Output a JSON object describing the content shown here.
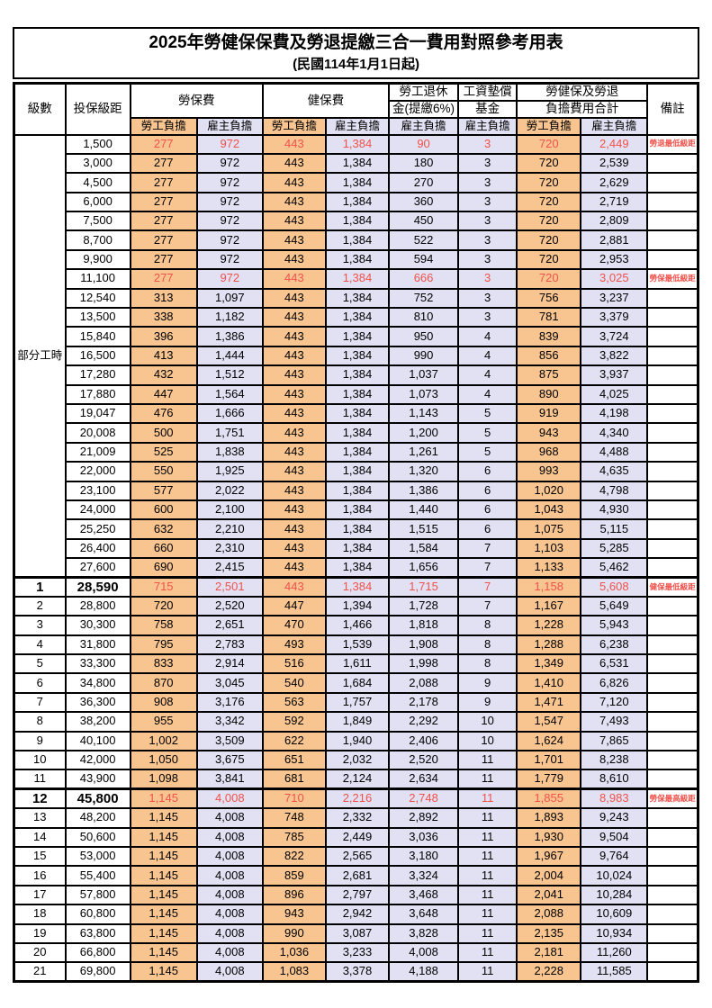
{
  "title": "2025年勞健保保費及勞退提繳三合一費用對照參考用表",
  "subtitle": "(民國114年1月1日起)",
  "header": {
    "level": "級數",
    "salary": "投保級距",
    "labor_ins": "勞保費",
    "health_ins": "健保費",
    "pension_line1": "勞工退休",
    "pension_line2": "金(提繳6%)",
    "wage_fund_line1": "工資墊償",
    "wage_fund_line2": "基金",
    "total_line1": "勞健保及勞退",
    "total_line2": "負擔費用合計",
    "remark": "備註",
    "employee": "勞工負擔",
    "employer": "雇主負擔"
  },
  "group_label": "部分工時",
  "colors": {
    "employee_bg": "#F8C591",
    "employer_bg": "#E2E0F3",
    "highlight_red": "#F0524B"
  },
  "rows": [
    {
      "salary": "1,500",
      "li_emp": "277",
      "li_er": "972",
      "hi_emp": "443",
      "hi_er": "1,384",
      "pension": "90",
      "fund": "3",
      "tot_emp": "720",
      "tot_er": "2,449",
      "note": "勞退最低級距",
      "red": true
    },
    {
      "salary": "3,000",
      "li_emp": "277",
      "li_er": "972",
      "hi_emp": "443",
      "hi_er": "1,384",
      "pension": "180",
      "fund": "3",
      "tot_emp": "720",
      "tot_er": "2,539",
      "note": ""
    },
    {
      "salary": "4,500",
      "li_emp": "277",
      "li_er": "972",
      "hi_emp": "443",
      "hi_er": "1,384",
      "pension": "270",
      "fund": "3",
      "tot_emp": "720",
      "tot_er": "2,629",
      "note": ""
    },
    {
      "salary": "6,000",
      "li_emp": "277",
      "li_er": "972",
      "hi_emp": "443",
      "hi_er": "1,384",
      "pension": "360",
      "fund": "3",
      "tot_emp": "720",
      "tot_er": "2,719",
      "note": ""
    },
    {
      "salary": "7,500",
      "li_emp": "277",
      "li_er": "972",
      "hi_emp": "443",
      "hi_er": "1,384",
      "pension": "450",
      "fund": "3",
      "tot_emp": "720",
      "tot_er": "2,809",
      "note": ""
    },
    {
      "salary": "8,700",
      "li_emp": "277",
      "li_er": "972",
      "hi_emp": "443",
      "hi_er": "1,384",
      "pension": "522",
      "fund": "3",
      "tot_emp": "720",
      "tot_er": "2,881",
      "note": ""
    },
    {
      "salary": "9,900",
      "li_emp": "277",
      "li_er": "972",
      "hi_emp": "443",
      "hi_er": "1,384",
      "pension": "594",
      "fund": "3",
      "tot_emp": "720",
      "tot_er": "2,953",
      "note": ""
    },
    {
      "salary": "11,100",
      "li_emp": "277",
      "li_er": "972",
      "hi_emp": "443",
      "hi_er": "1,384",
      "pension": "666",
      "fund": "3",
      "tot_emp": "720",
      "tot_er": "3,025",
      "note": "勞保最低級距",
      "red": true
    },
    {
      "salary": "12,540",
      "li_emp": "313",
      "li_er": "1,097",
      "hi_emp": "443",
      "hi_er": "1,384",
      "pension": "752",
      "fund": "3",
      "tot_emp": "756",
      "tot_er": "3,237",
      "note": ""
    },
    {
      "salary": "13,500",
      "li_emp": "338",
      "li_er": "1,182",
      "hi_emp": "443",
      "hi_er": "1,384",
      "pension": "810",
      "fund": "3",
      "tot_emp": "781",
      "tot_er": "3,379",
      "note": ""
    },
    {
      "salary": "15,840",
      "li_emp": "396",
      "li_er": "1,386",
      "hi_emp": "443",
      "hi_er": "1,384",
      "pension": "950",
      "fund": "4",
      "tot_emp": "839",
      "tot_er": "3,724",
      "note": ""
    },
    {
      "salary": "16,500",
      "li_emp": "413",
      "li_er": "1,444",
      "hi_emp": "443",
      "hi_er": "1,384",
      "pension": "990",
      "fund": "4",
      "tot_emp": "856",
      "tot_er": "3,822",
      "note": ""
    },
    {
      "salary": "17,280",
      "li_emp": "432",
      "li_er": "1,512",
      "hi_emp": "443",
      "hi_er": "1,384",
      "pension": "1,037",
      "fund": "4",
      "tot_emp": "875",
      "tot_er": "3,937",
      "note": ""
    },
    {
      "salary": "17,880",
      "li_emp": "447",
      "li_er": "1,564",
      "hi_emp": "443",
      "hi_er": "1,384",
      "pension": "1,073",
      "fund": "4",
      "tot_emp": "890",
      "tot_er": "4,025",
      "note": ""
    },
    {
      "salary": "19,047",
      "li_emp": "476",
      "li_er": "1,666",
      "hi_emp": "443",
      "hi_er": "1,384",
      "pension": "1,143",
      "fund": "5",
      "tot_emp": "919",
      "tot_er": "4,198",
      "note": ""
    },
    {
      "salary": "20,008",
      "li_emp": "500",
      "li_er": "1,751",
      "hi_emp": "443",
      "hi_er": "1,384",
      "pension": "1,200",
      "fund": "5",
      "tot_emp": "943",
      "tot_er": "4,340",
      "note": ""
    },
    {
      "salary": "21,009",
      "li_emp": "525",
      "li_er": "1,838",
      "hi_emp": "443",
      "hi_er": "1,384",
      "pension": "1,261",
      "fund": "5",
      "tot_emp": "968",
      "tot_er": "4,488",
      "note": ""
    },
    {
      "salary": "22,000",
      "li_emp": "550",
      "li_er": "1,925",
      "hi_emp": "443",
      "hi_er": "1,384",
      "pension": "1,320",
      "fund": "6",
      "tot_emp": "993",
      "tot_er": "4,635",
      "note": ""
    },
    {
      "salary": "23,100",
      "li_emp": "577",
      "li_er": "2,022",
      "hi_emp": "443",
      "hi_er": "1,384",
      "pension": "1,386",
      "fund": "6",
      "tot_emp": "1,020",
      "tot_er": "4,798",
      "note": ""
    },
    {
      "salary": "24,000",
      "li_emp": "600",
      "li_er": "2,100",
      "hi_emp": "443",
      "hi_er": "1,384",
      "pension": "1,440",
      "fund": "6",
      "tot_emp": "1,043",
      "tot_er": "4,930",
      "note": ""
    },
    {
      "salary": "25,250",
      "li_emp": "632",
      "li_er": "2,210",
      "hi_emp": "443",
      "hi_er": "1,384",
      "pension": "1,515",
      "fund": "6",
      "tot_emp": "1,075",
      "tot_er": "5,115",
      "note": ""
    },
    {
      "salary": "26,400",
      "li_emp": "660",
      "li_er": "2,310",
      "hi_emp": "443",
      "hi_er": "1,384",
      "pension": "1,584",
      "fund": "7",
      "tot_emp": "1,103",
      "tot_er": "5,285",
      "note": ""
    },
    {
      "salary": "27,600",
      "li_emp": "690",
      "li_er": "2,415",
      "hi_emp": "443",
      "hi_er": "1,384",
      "pension": "1,656",
      "fund": "7",
      "tot_emp": "1,133",
      "tot_er": "5,462",
      "note": ""
    },
    {
      "level": "1",
      "salary": "28,590",
      "li_emp": "715",
      "li_er": "2,501",
      "hi_emp": "443",
      "hi_er": "1,384",
      "pension": "1,715",
      "fund": "7",
      "tot_emp": "1,158",
      "tot_er": "5,608",
      "note": "健保最低級距",
      "red": true,
      "key": true
    },
    {
      "level": "2",
      "salary": "28,800",
      "li_emp": "720",
      "li_er": "2,520",
      "hi_emp": "447",
      "hi_er": "1,394",
      "pension": "1,728",
      "fund": "7",
      "tot_emp": "1,167",
      "tot_er": "5,649",
      "note": ""
    },
    {
      "level": "3",
      "salary": "30,300",
      "li_emp": "758",
      "li_er": "2,651",
      "hi_emp": "470",
      "hi_er": "1,466",
      "pension": "1,818",
      "fund": "8",
      "tot_emp": "1,228",
      "tot_er": "5,943",
      "note": ""
    },
    {
      "level": "4",
      "salary": "31,800",
      "li_emp": "795",
      "li_er": "2,783",
      "hi_emp": "493",
      "hi_er": "1,539",
      "pension": "1,908",
      "fund": "8",
      "tot_emp": "1,288",
      "tot_er": "6,238",
      "note": ""
    },
    {
      "level": "5",
      "salary": "33,300",
      "li_emp": "833",
      "li_er": "2,914",
      "hi_emp": "516",
      "hi_er": "1,611",
      "pension": "1,998",
      "fund": "8",
      "tot_emp": "1,349",
      "tot_er": "6,531",
      "note": ""
    },
    {
      "level": "6",
      "salary": "34,800",
      "li_emp": "870",
      "li_er": "3,045",
      "hi_emp": "540",
      "hi_er": "1,684",
      "pension": "2,088",
      "fund": "9",
      "tot_emp": "1,410",
      "tot_er": "6,826",
      "note": ""
    },
    {
      "level": "7",
      "salary": "36,300",
      "li_emp": "908",
      "li_er": "3,176",
      "hi_emp": "563",
      "hi_er": "1,757",
      "pension": "2,178",
      "fund": "9",
      "tot_emp": "1,471",
      "tot_er": "7,120",
      "note": ""
    },
    {
      "level": "8",
      "salary": "38,200",
      "li_emp": "955",
      "li_er": "3,342",
      "hi_emp": "592",
      "hi_er": "1,849",
      "pension": "2,292",
      "fund": "10",
      "tot_emp": "1,547",
      "tot_er": "7,493",
      "note": ""
    },
    {
      "level": "9",
      "salary": "40,100",
      "li_emp": "1,002",
      "li_er": "3,509",
      "hi_emp": "622",
      "hi_er": "1,940",
      "pension": "2,406",
      "fund": "10",
      "tot_emp": "1,624",
      "tot_er": "7,865",
      "note": ""
    },
    {
      "level": "10",
      "salary": "42,000",
      "li_emp": "1,050",
      "li_er": "3,675",
      "hi_emp": "651",
      "hi_er": "2,032",
      "pension": "2,520",
      "fund": "11",
      "tot_emp": "1,701",
      "tot_er": "8,238",
      "note": ""
    },
    {
      "level": "11",
      "salary": "43,900",
      "li_emp": "1,098",
      "li_er": "3,841",
      "hi_emp": "681",
      "hi_er": "2,124",
      "pension": "2,634",
      "fund": "11",
      "tot_emp": "1,779",
      "tot_er": "8,610",
      "note": ""
    },
    {
      "level": "12",
      "salary": "45,800",
      "li_emp": "1,145",
      "li_er": "4,008",
      "hi_emp": "710",
      "hi_er": "2,216",
      "pension": "2,748",
      "fund": "11",
      "tot_emp": "1,855",
      "tot_er": "8,983",
      "note": "勞保最高級距",
      "red": true,
      "key": true
    },
    {
      "level": "13",
      "salary": "48,200",
      "li_emp": "1,145",
      "li_er": "4,008",
      "hi_emp": "748",
      "hi_er": "2,332",
      "pension": "2,892",
      "fund": "11",
      "tot_emp": "1,893",
      "tot_er": "9,243",
      "note": ""
    },
    {
      "level": "14",
      "salary": "50,600",
      "li_emp": "1,145",
      "li_er": "4,008",
      "hi_emp": "785",
      "hi_er": "2,449",
      "pension": "3,036",
      "fund": "11",
      "tot_emp": "1,930",
      "tot_er": "9,504",
      "note": ""
    },
    {
      "level": "15",
      "salary": "53,000",
      "li_emp": "1,145",
      "li_er": "4,008",
      "hi_emp": "822",
      "hi_er": "2,565",
      "pension": "3,180",
      "fund": "11",
      "tot_emp": "1,967",
      "tot_er": "9,764",
      "note": ""
    },
    {
      "level": "16",
      "salary": "55,400",
      "li_emp": "1,145",
      "li_er": "4,008",
      "hi_emp": "859",
      "hi_er": "2,681",
      "pension": "3,324",
      "fund": "11",
      "tot_emp": "2,004",
      "tot_er": "10,024",
      "note": ""
    },
    {
      "level": "17",
      "salary": "57,800",
      "li_emp": "1,145",
      "li_er": "4,008",
      "hi_emp": "896",
      "hi_er": "2,797",
      "pension": "3,468",
      "fund": "11",
      "tot_emp": "2,041",
      "tot_er": "10,284",
      "note": ""
    },
    {
      "level": "18",
      "salary": "60,800",
      "li_emp": "1,145",
      "li_er": "4,008",
      "hi_emp": "943",
      "hi_er": "2,942",
      "pension": "3,648",
      "fund": "11",
      "tot_emp": "2,088",
      "tot_er": "10,609",
      "note": ""
    },
    {
      "level": "19",
      "salary": "63,800",
      "li_emp": "1,145",
      "li_er": "4,008",
      "hi_emp": "990",
      "hi_er": "3,087",
      "pension": "3,828",
      "fund": "11",
      "tot_emp": "2,135",
      "tot_er": "10,934",
      "note": ""
    },
    {
      "level": "20",
      "salary": "66,800",
      "li_emp": "1,145",
      "li_er": "4,008",
      "hi_emp": "1,036",
      "hi_er": "3,233",
      "pension": "4,008",
      "fund": "11",
      "tot_emp": "2,181",
      "tot_er": "11,260",
      "note": ""
    },
    {
      "level": "21",
      "salary": "69,800",
      "li_emp": "1,145",
      "li_er": "4,008",
      "hi_emp": "1,083",
      "hi_er": "3,378",
      "pension": "4,188",
      "fund": "11",
      "tot_emp": "2,228",
      "tot_er": "11,585",
      "note": ""
    }
  ]
}
